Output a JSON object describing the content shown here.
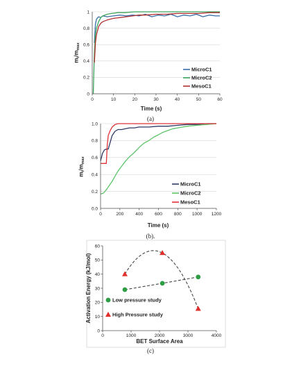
{
  "chart_data": [
    {
      "id": "a",
      "type": "line",
      "caption": "(a)",
      "xlabel": "Time (s)",
      "ylabel": "m_t/m_max",
      "xlim": [
        0,
        60
      ],
      "ylim": [
        0,
        1
      ],
      "xticks": [
        "0",
        "10",
        "20",
        "30",
        "40",
        "50",
        "60"
      ],
      "yticks": [
        "0",
        "0.2",
        "0.4",
        "0.6",
        "0.8",
        "1"
      ],
      "grid": true,
      "legend_position": "bottom-right",
      "series": [
        {
          "name": "MicroC1",
          "color": "#3a6ea8",
          "x": [
            1,
            1.5,
            2,
            3,
            4,
            5,
            7,
            10,
            13,
            16,
            19,
            22,
            25,
            28,
            31,
            34,
            37,
            40,
            43,
            46,
            49,
            52,
            55,
            58,
            60
          ],
          "y": [
            0.62,
            0.85,
            0.91,
            0.94,
            0.93,
            0.95,
            0.94,
            0.95,
            0.96,
            0.95,
            0.96,
            0.95,
            0.97,
            0.94,
            0.96,
            0.95,
            0.97,
            0.94,
            0.96,
            0.95,
            0.97,
            0.94,
            0.96,
            0.95,
            0.95
          ]
        },
        {
          "name": "MicroC2",
          "color": "#3ba55c",
          "x": [
            0.5,
            1,
            1.5,
            2,
            3,
            4,
            5,
            7,
            9,
            12,
            15,
            20,
            25,
            30,
            40,
            50,
            60
          ],
          "y": [
            0.0,
            0.5,
            0.72,
            0.8,
            0.88,
            0.93,
            0.95,
            0.97,
            0.98,
            0.99,
            0.99,
            1.0,
            1.0,
            1.0,
            1.0,
            1.0,
            1.0
          ]
        },
        {
          "name": "MesoC1",
          "color": "#b03030",
          "x": [
            1,
            1.5,
            2,
            3,
            4,
            5,
            7,
            10,
            13,
            16,
            19,
            22,
            25,
            30,
            35,
            40,
            45,
            50,
            55,
            60
          ],
          "y": [
            0.38,
            0.62,
            0.72,
            0.82,
            0.86,
            0.88,
            0.9,
            0.92,
            0.93,
            0.94,
            0.95,
            0.96,
            0.96,
            0.97,
            0.97,
            0.98,
            0.98,
            0.98,
            0.99,
            0.99
          ]
        }
      ]
    },
    {
      "id": "b",
      "type": "line",
      "caption": "(b).",
      "xlabel": "Time (s)",
      "ylabel": "m_t/m_max",
      "xlim": [
        0,
        1200
      ],
      "ylim": [
        0,
        1
      ],
      "xticks": [
        "0",
        "200",
        "400",
        "600",
        "800",
        "1000",
        "1200"
      ],
      "yticks": [
        "0.0",
        "0.2",
        "0.4",
        "0.6",
        "0.8",
        "1.0"
      ],
      "grid": true,
      "legend_position": "bottom-right",
      "series": [
        {
          "name": "MicroC1",
          "color": "#2e3a63",
          "x": [
            0,
            20,
            40,
            60,
            80,
            100,
            120,
            150,
            180,
            220,
            260,
            300,
            350,
            400,
            500,
            600,
            700,
            800,
            900,
            1000,
            1100,
            1200
          ],
          "y": [
            0.56,
            0.65,
            0.69,
            0.7,
            0.7,
            0.78,
            0.86,
            0.91,
            0.93,
            0.93,
            0.94,
            0.95,
            0.95,
            0.96,
            0.96,
            0.97,
            0.97,
            0.98,
            0.99,
            0.99,
            1.0,
            1.0
          ]
        },
        {
          "name": "MicroC2",
          "color": "#5cc46a",
          "x": [
            0,
            30,
            60,
            90,
            120,
            150,
            180,
            220,
            260,
            300,
            350,
            400,
            450,
            500,
            550,
            600,
            650,
            700,
            750,
            800,
            850,
            900,
            1000,
            1100,
            1200
          ],
          "y": [
            0.17,
            0.18,
            0.22,
            0.27,
            0.32,
            0.38,
            0.44,
            0.5,
            0.56,
            0.61,
            0.66,
            0.72,
            0.77,
            0.8,
            0.84,
            0.87,
            0.9,
            0.92,
            0.94,
            0.95,
            0.96,
            0.97,
            0.98,
            0.99,
            1.0
          ]
        },
        {
          "name": "MesoC1",
          "color": "#e0323a",
          "x": [
            0,
            30,
            60,
            70,
            80,
            100,
            120,
            150,
            180,
            250,
            300,
            400,
            600,
            800,
            1000,
            1200
          ],
          "y": [
            0.53,
            0.53,
            0.53,
            0.75,
            0.86,
            0.92,
            0.96,
            0.99,
            1.0,
            1.0,
            1.0,
            1.0,
            1.0,
            1.0,
            1.0,
            1.0
          ]
        }
      ]
    },
    {
      "id": "c",
      "type": "scatter",
      "caption": "(c)",
      "xlabel": "BET Surface Area",
      "ylabel": "Activation Energy (kJ/mol)",
      "xlim": [
        0,
        4000
      ],
      "ylim": [
        0,
        60
      ],
      "xticks": [
        "0",
        "1000",
        "2000",
        "3000",
        "4000"
      ],
      "yticks": [
        "0",
        "10",
        "20",
        "30",
        "40",
        "50",
        "60"
      ],
      "grid": false,
      "legend_position": "inside-lower-left",
      "series": [
        {
          "name": "Low pressure study",
          "color": "#2e9e45",
          "marker": "circle",
          "x": [
            780,
            2100,
            3360
          ],
          "y": [
            29,
            33.5,
            38
          ]
        },
        {
          "name": "High Pressure study",
          "color": "#e0302c",
          "marker": "triangle",
          "x": [
            780,
            2100,
            3360
          ],
          "y": [
            40,
            55,
            15.5
          ]
        }
      ]
    }
  ]
}
